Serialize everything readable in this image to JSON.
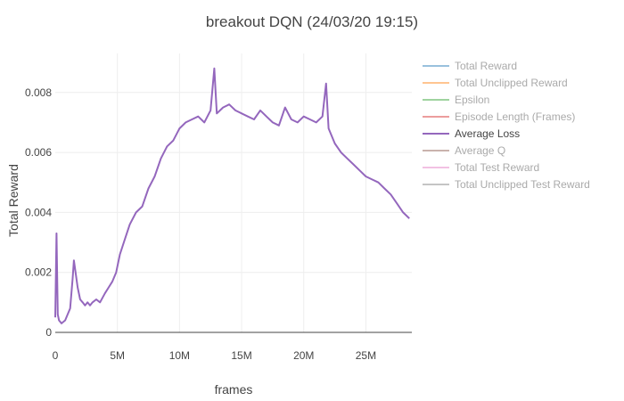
{
  "chart_data": {
    "type": "line",
    "title": "breakout DQN (24/03/20 19:15)",
    "xlabel": "frames",
    "ylabel": "Total Reward",
    "xlim": [
      0,
      28700000
    ],
    "ylim": [
      0,
      0.0093
    ],
    "x_ticks": [
      {
        "value": 0,
        "label": "0"
      },
      {
        "value": 5000000,
        "label": "5M"
      },
      {
        "value": 10000000,
        "label": "10M"
      },
      {
        "value": 15000000,
        "label": "15M"
      },
      {
        "value": 20000000,
        "label": "20M"
      },
      {
        "value": 25000000,
        "label": "25M"
      }
    ],
    "y_ticks": [
      {
        "value": 0,
        "label": "0"
      },
      {
        "value": 0.002,
        "label": "0.002"
      },
      {
        "value": 0.004,
        "label": "0.004"
      },
      {
        "value": 0.006,
        "label": "0.006"
      },
      {
        "value": 0.008,
        "label": "0.008"
      }
    ],
    "grid": true,
    "legend_position": "right",
    "legend": [
      {
        "name": "Total Reward",
        "color": "#1f77b4",
        "visible": false
      },
      {
        "name": "Total Unclipped Reward",
        "color": "#ff7f0e",
        "visible": false
      },
      {
        "name": "Epsilon",
        "color": "#2ca02c",
        "visible": false
      },
      {
        "name": "Episode Length (Frames)",
        "color": "#d62728",
        "visible": false
      },
      {
        "name": "Average Loss",
        "color": "#9467bd",
        "visible": true
      },
      {
        "name": "Average Q",
        "color": "#8c564b",
        "visible": false
      },
      {
        "name": "Total Test Reward",
        "color": "#e377c2",
        "visible": false
      },
      {
        "name": "Total Unclipped Test Reward",
        "color": "#7f7f7f",
        "visible": false
      }
    ],
    "series": [
      {
        "name": "Average Loss",
        "color": "#9467bd",
        "x": [
          0,
          100000,
          200000,
          300000,
          500000,
          800000,
          1000000,
          1200000,
          1400000,
          1500000,
          1600000,
          1800000,
          2000000,
          2200000,
          2400000,
          2600000,
          2800000,
          3000000,
          3300000,
          3600000,
          4000000,
          4300000,
          4600000,
          4900000,
          5200000,
          5600000,
          6000000,
          6500000,
          7000000,
          7500000,
          8000000,
          8500000,
          9000000,
          9500000,
          10000000,
          10500000,
          11000000,
          11500000,
          12000000,
          12500000,
          12800000,
          13000000,
          13500000,
          14000000,
          14500000,
          15000000,
          15500000,
          16000000,
          16500000,
          17000000,
          17500000,
          18000000,
          18500000,
          19000000,
          19500000,
          20000000,
          20500000,
          21000000,
          21500000,
          21800000,
          22000000,
          22500000,
          23000000,
          23500000,
          24000000,
          24500000,
          25000000,
          25500000,
          26000000,
          26500000,
          27000000,
          27500000,
          28000000,
          28500000
        ],
        "values": [
          0.0005,
          0.0033,
          0.0006,
          0.0004,
          0.0003,
          0.0004,
          0.0006,
          0.0008,
          0.0018,
          0.0024,
          0.0021,
          0.0015,
          0.0011,
          0.001,
          0.0009,
          0.001,
          0.0009,
          0.001,
          0.0011,
          0.001,
          0.0013,
          0.0015,
          0.0017,
          0.002,
          0.0026,
          0.0031,
          0.0036,
          0.004,
          0.0042,
          0.0048,
          0.0052,
          0.0058,
          0.0062,
          0.0064,
          0.0068,
          0.007,
          0.0071,
          0.0072,
          0.007,
          0.0074,
          0.0088,
          0.0073,
          0.0075,
          0.0076,
          0.0074,
          0.0073,
          0.0072,
          0.0071,
          0.0074,
          0.0072,
          0.007,
          0.0069,
          0.0075,
          0.0071,
          0.007,
          0.0072,
          0.0071,
          0.007,
          0.0072,
          0.0083,
          0.0068,
          0.0063,
          0.006,
          0.0058,
          0.0056,
          0.0054,
          0.0052,
          0.0051,
          0.005,
          0.0048,
          0.0046,
          0.0043,
          0.004,
          0.0038
        ]
      }
    ]
  }
}
